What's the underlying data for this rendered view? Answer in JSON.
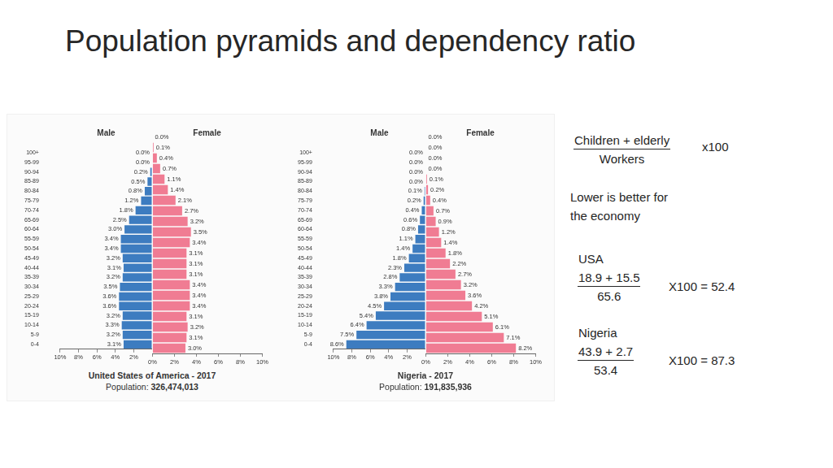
{
  "title": "Population pyramids and dependency ratio",
  "chart_data": [
    {
      "type": "pyramid",
      "orientation": "horizontal",
      "title": "United States of America - 2017",
      "subtitle": "Population: 326,474,013",
      "categories": [
        "100+",
        "95-99",
        "90-94",
        "85-89",
        "80-84",
        "75-79",
        "70-74",
        "65-69",
        "60-64",
        "55-59",
        "50-54",
        "45-49",
        "40-44",
        "35-39",
        "30-34",
        "25-29",
        "20-24",
        "15-19",
        "10-14",
        "5-9",
        "0-4"
      ],
      "series": [
        {
          "name": "Male",
          "color": "#3d7cc0",
          "values": [
            0,
            0,
            0.2,
            0.5,
            0.8,
            1.2,
            1.8,
            2.5,
            3.0,
            3.4,
            3.4,
            3.2,
            3.1,
            3.2,
            3.5,
            3.6,
            3.6,
            3.2,
            3.3,
            3.2,
            3.1
          ],
          "value_labels": [
            "0.0%",
            "0.0%",
            "0.2%",
            "0.5%",
            "0.8%",
            "1.2%",
            "1.8%",
            "2.5%",
            "3.0%",
            "3.4%",
            "3.4%",
            "3.2%",
            "3.1%",
            "3.2%",
            "3.5%",
            "3.6%",
            "3.6%",
            "3.2%",
            "3.3%",
            "3.2%",
            "3.1%"
          ]
        },
        {
          "name": "Female",
          "color": "#f07c93",
          "values": [
            0,
            0.1,
            0.4,
            0.7,
            1.1,
            1.4,
            2.1,
            2.7,
            3.2,
            3.5,
            3.4,
            3.1,
            3.1,
            3.1,
            3.4,
            3.4,
            3.4,
            3.1,
            3.2,
            3.1,
            3.0
          ],
          "value_labels": [
            "0.0%",
            "0.1%",
            "0.4%",
            "0.7%",
            "1.1%",
            "1.4%",
            "2.1%",
            "2.7%",
            "3.2%",
            "3.5%",
            "3.4%",
            "3.1%",
            "3.1%",
            "3.1%",
            "3.4%",
            "3.4%",
            "3.4%",
            "3.1%",
            "3.2%",
            "3.1%",
            "3.0%"
          ]
        }
      ],
      "xlim": [
        0,
        10
      ],
      "xticks": [
        {
          "value": 0,
          "label": "0%"
        },
        {
          "value": 2,
          "label": "2%"
        },
        {
          "value": 4,
          "label": "4%"
        },
        {
          "value": 6,
          "label": "6%"
        },
        {
          "value": 8,
          "label": "8%"
        },
        {
          "value": 10,
          "label": "10%"
        }
      ],
      "data_labels": true,
      "grid": false
    },
    {
      "type": "pyramid",
      "orientation": "horizontal",
      "title": "Nigeria - 2017",
      "subtitle": "Population: 191,835,936",
      "categories": [
        "100+",
        "95-99",
        "90-94",
        "85-89",
        "80-84",
        "75-79",
        "70-74",
        "65-69",
        "60-64",
        "55-59",
        "50-54",
        "45-49",
        "40-44",
        "35-39",
        "30-34",
        "25-29",
        "20-24",
        "15-19",
        "10-14",
        "5-9",
        "0-4"
      ],
      "series": [
        {
          "name": "Male",
          "color": "#3d7cc0",
          "values": [
            0,
            0,
            0,
            0,
            0.1,
            0.2,
            0.4,
            0.6,
            0.8,
            1.1,
            1.4,
            1.8,
            2.3,
            2.8,
            3.3,
            3.8,
            4.5,
            5.4,
            6.4,
            7.5,
            8.6
          ],
          "value_labels": [
            "0.0%",
            "0.0%",
            "0.0%",
            "0.0%",
            "0.1%",
            "0.2%",
            "0.4%",
            "0.6%",
            "0.8%",
            "1.1%",
            "1.4%",
            "1.8%",
            "2.3%",
            "2.8%",
            "3.3%",
            "3.8%",
            "4.5%",
            "5.4%",
            "6.4%",
            "7.5%",
            "8.6%"
          ]
        },
        {
          "name": "Female",
          "color": "#f07c93",
          "values": [
            0,
            0,
            0,
            0,
            0.1,
            0.2,
            0.4,
            0.7,
            0.9,
            1.2,
            1.4,
            1.8,
            2.2,
            2.7,
            3.2,
            3.6,
            4.2,
            5.1,
            6.1,
            7.1,
            8.2
          ],
          "value_labels": [
            "0.0%",
            "0.0%",
            "0.0%",
            "0.0%",
            "0.1%",
            "0.2%",
            "0.4%",
            "0.7%",
            "0.9%",
            "1.2%",
            "1.4%",
            "1.8%",
            "2.2%",
            "2.7%",
            "3.2%",
            "3.6%",
            "4.2%",
            "5.1%",
            "6.1%",
            "7.1%",
            "8.2%"
          ]
        }
      ],
      "xlim": [
        0,
        10
      ],
      "xticks": [
        {
          "value": 0,
          "label": "0%"
        },
        {
          "value": 2,
          "label": "2%"
        },
        {
          "value": 4,
          "label": "4%"
        },
        {
          "value": 6,
          "label": "6%"
        },
        {
          "value": 8,
          "label": "8%"
        },
        {
          "value": 10,
          "label": "10%"
        }
      ],
      "data_labels": true,
      "grid": false
    }
  ],
  "formula": {
    "numerator": "Children + elderly",
    "denominator": "Workers",
    "multiplier": "x100",
    "note": [
      "Lower is better for",
      "the economy"
    ]
  },
  "examples": [
    {
      "country": "USA",
      "numerator": "18.9 + 15.5",
      "denominator": "65.6",
      "result": "X100 = 52.4"
    },
    {
      "country": "Nigeria",
      "numerator": "43.9 + 2.7",
      "denominator": "53.4",
      "result": "X100 = 87.3"
    }
  ]
}
